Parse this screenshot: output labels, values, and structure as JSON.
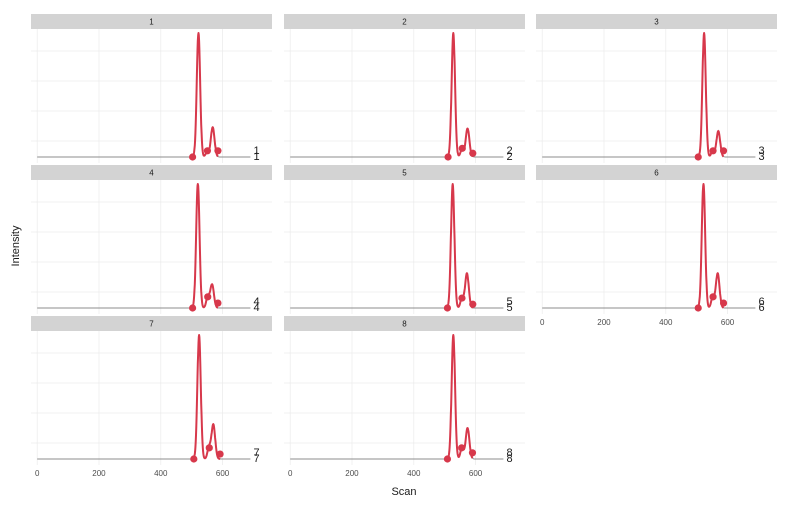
{
  "chart_data": {
    "type": "line",
    "facet_layout": "wrap",
    "xlabel": "Scan",
    "ylabel": "Intensity",
    "xlim": [
      -20,
      760
    ],
    "x_ticks": [
      0,
      200,
      400,
      600
    ],
    "x_tick_labels": [
      "0",
      "200",
      "400",
      "600"
    ],
    "grid": true,
    "colors": {
      "highlight": "#d7384b",
      "baseline": "#8c8c8c",
      "strip": "#d3d3d3",
      "grid": "#ebebeb"
    },
    "panels": [
      {
        "label": "1",
        "peak_points": [
          [
            503,
            0.0
          ],
          [
            551,
            0.05
          ],
          [
            585,
            0.05
          ]
        ],
        "peaks": [
          {
            "x": 522,
            "h": 1.0,
            "w": 5.5
          },
          {
            "x": 568,
            "h": 0.24,
            "w": 6
          },
          {
            "x": 550,
            "h": 0.04,
            "w": 5
          }
        ],
        "end_labels": [
          "1",
          "1"
        ]
      },
      {
        "label": "2",
        "peak_points": [
          [
            511,
            0.0
          ],
          [
            557,
            0.07
          ],
          [
            591,
            0.03
          ]
        ],
        "peaks": [
          {
            "x": 528,
            "h": 1.0,
            "w": 5.5
          },
          {
            "x": 574,
            "h": 0.23,
            "w": 6
          },
          {
            "x": 556,
            "h": 0.06,
            "w": 5
          }
        ],
        "end_labels": [
          "2",
          "2"
        ]
      },
      {
        "label": "3",
        "peak_points": [
          [
            505,
            0.0
          ],
          [
            553,
            0.05
          ],
          [
            587,
            0.05
          ]
        ],
        "peaks": [
          {
            "x": 524,
            "h": 1.0,
            "w": 5.5
          },
          {
            "x": 570,
            "h": 0.21,
            "w": 6
          },
          {
            "x": 552,
            "h": 0.05,
            "w": 5
          }
        ],
        "end_labels": [
          "3",
          "3"
        ]
      },
      {
        "label": "4",
        "peak_points": [
          [
            503,
            0.0
          ],
          [
            552,
            0.09
          ],
          [
            585,
            0.04
          ]
        ],
        "peaks": [
          {
            "x": 520,
            "h": 1.0,
            "w": 5.5
          },
          {
            "x": 566,
            "h": 0.19,
            "w": 6
          },
          {
            "x": 552,
            "h": 0.09,
            "w": 5
          }
        ],
        "end_labels": [
          "4",
          "4"
        ]
      },
      {
        "label": "5",
        "peak_points": [
          [
            509,
            0.0
          ],
          [
            556,
            0.08
          ],
          [
            591,
            0.03
          ]
        ],
        "peaks": [
          {
            "x": 526,
            "h": 1.0,
            "w": 5.5
          },
          {
            "x": 572,
            "h": 0.28,
            "w": 6
          },
          {
            "x": 556,
            "h": 0.08,
            "w": 5
          }
        ],
        "end_labels": [
          "5",
          "5"
        ]
      },
      {
        "label": "6",
        "peak_points": [
          [
            505,
            0.0
          ],
          [
            553,
            0.09
          ],
          [
            587,
            0.04
          ]
        ],
        "peaks": [
          {
            "x": 522,
            "h": 1.0,
            "w": 5.5
          },
          {
            "x": 568,
            "h": 0.28,
            "w": 6
          },
          {
            "x": 552,
            "h": 0.09,
            "w": 5
          }
        ],
        "end_labels": [
          "6",
          "6"
        ]
      },
      {
        "label": "7",
        "peak_points": [
          [
            507,
            0.0
          ],
          [
            557,
            0.09
          ],
          [
            592,
            0.04
          ]
        ],
        "peaks": [
          {
            "x": 524,
            "h": 1.0,
            "w": 5.5
          },
          {
            "x": 570,
            "h": 0.28,
            "w": 6
          },
          {
            "x": 556,
            "h": 0.09,
            "w": 5
          }
        ],
        "end_labels": [
          "7",
          "7"
        ]
      },
      {
        "label": "8",
        "peak_points": [
          [
            509,
            0.0
          ],
          [
            555,
            0.09
          ],
          [
            590,
            0.05
          ]
        ],
        "peaks": [
          {
            "x": 528,
            "h": 1.0,
            "w": 5.5
          },
          {
            "x": 574,
            "h": 0.25,
            "w": 6
          },
          {
            "x": 556,
            "h": 0.09,
            "w": 5
          }
        ],
        "end_labels": [
          "8",
          "8"
        ]
      }
    ]
  }
}
